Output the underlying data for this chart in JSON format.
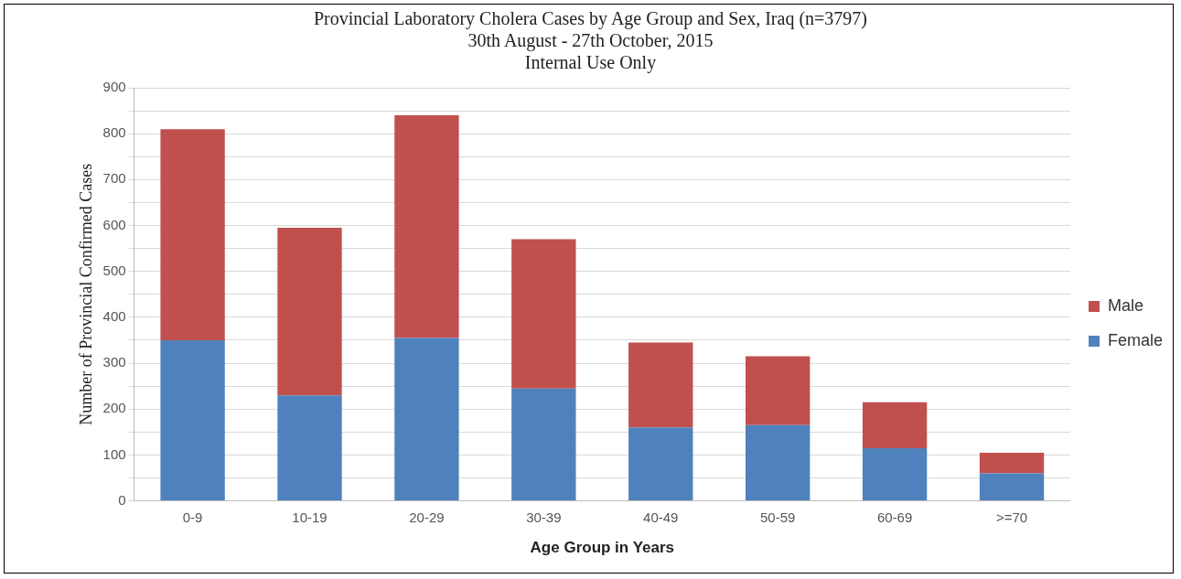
{
  "chart_data": {
    "type": "bar",
    "title": "Provincial Laboratory Cholera Cases by Age Group and Sex, Iraq  (n=3797)",
    "subtitle": "30th August - 27th October, 2015",
    "annotations": [
      "Internal Use Only"
    ],
    "xlabel": "Age Group in Years",
    "ylabel": "Number of Provincial Confirmed Cases",
    "categories": [
      "0-9",
      "10-19",
      "20-29",
      "30-39",
      "40-49",
      "50-59",
      "60-69",
      ">=70"
    ],
    "stacked": true,
    "series": [
      {
        "name": "Female",
        "color": "#4f81bd",
        "values": [
          350,
          230,
          355,
          245,
          160,
          165,
          115,
          60
        ]
      },
      {
        "name": "Male",
        "color": "#c0504d",
        "values": [
          460,
          365,
          485,
          325,
          185,
          150,
          100,
          45
        ]
      }
    ],
    "ylim": [
      0,
      900
    ],
    "yticks": [
      0,
      {
        "value": 50,
        "label": null
      },
      100,
      {
        "value": 150,
        "label": null
      },
      200,
      {
        "value": 250,
        "label": null
      },
      300,
      {
        "value": 350,
        "label": null
      },
      400,
      {
        "value": 450,
        "label": null
      },
      500,
      {
        "value": 550,
        "label": null
      },
      600,
      {
        "value": 650,
        "label": null
      },
      700,
      {
        "value": 750,
        "label": null
      },
      800,
      {
        "value": 850,
        "label": null
      },
      900
    ],
    "grid": "y",
    "legend": "right"
  }
}
